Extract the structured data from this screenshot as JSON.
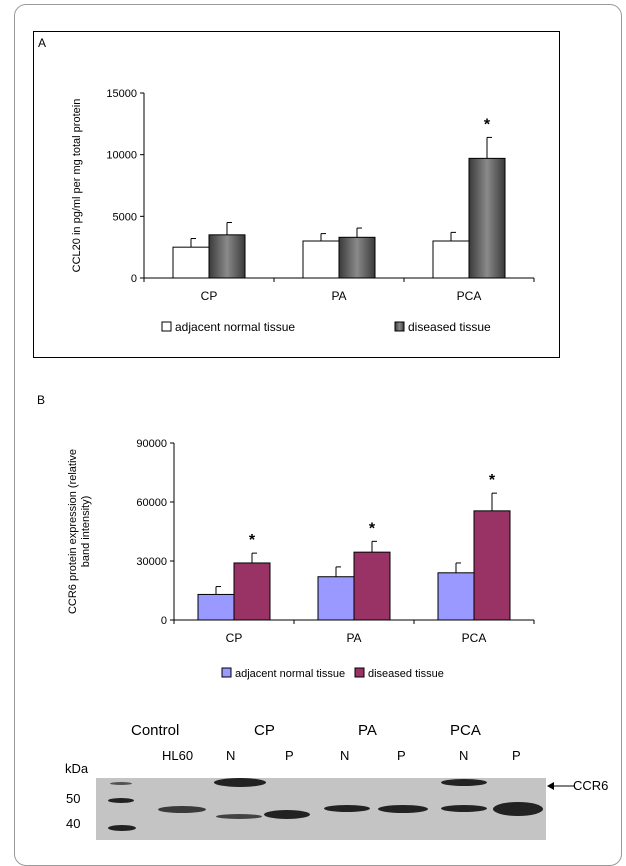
{
  "chart_data": [
    {
      "panel": "A",
      "type": "bar",
      "categories": [
        "CP",
        "PA",
        "PCA"
      ],
      "ylabel": "CCL20 in pg/ml per mg total protein",
      "ylim": [
        0,
        15000
      ],
      "yticks": [
        "0",
        "5000",
        "10000",
        "15000"
      ],
      "legend_position": "bottom",
      "grid": false,
      "series": [
        {
          "name": "adjacent normal tissue",
          "values": [
            2500,
            3000,
            3000
          ],
          "errors": [
            700,
            600,
            700
          ],
          "color": "#ffffff"
        },
        {
          "name": "diseased tissue",
          "values": [
            3500,
            3300,
            9700
          ],
          "errors": [
            1000,
            750,
            1700
          ],
          "color": "#555555"
        }
      ],
      "annotations": [
        {
          "text": "*",
          "category": "PCA",
          "series": "diseased tissue"
        }
      ]
    },
    {
      "panel": "B",
      "type": "bar",
      "categories": [
        "CP",
        "PA",
        "PCA"
      ],
      "ylabel_line1": "CCR6 protein expression (relative",
      "ylabel_line2": "band intensity)",
      "ylim": [
        0,
        90000
      ],
      "yticks": [
        "0",
        "30000",
        "60000",
        "90000"
      ],
      "legend_position": "bottom",
      "grid": false,
      "series": [
        {
          "name": "adjacent normal tissue",
          "values": [
            13000,
            22000,
            24000
          ],
          "errors": [
            4000,
            5000,
            5000
          ],
          "color": "#9999ff"
        },
        {
          "name": "diseased tissue",
          "values": [
            29000,
            34500,
            55500
          ],
          "errors": [
            5000,
            5500,
            9000
          ],
          "color": "#993366"
        }
      ],
      "annotations": [
        {
          "text": "*",
          "category": "CP",
          "series": "diseased tissue"
        },
        {
          "text": "*",
          "category": "PA",
          "series": "diseased tissue"
        },
        {
          "text": "*",
          "category": "PCA",
          "series": "diseased tissue"
        }
      ]
    }
  ],
  "panels": {
    "a_label": "A",
    "b_label": "B"
  },
  "blot": {
    "group_labels": {
      "control": "Control",
      "cp": "CP",
      "pa": "PA",
      "pca": "PCA"
    },
    "lane_labels": {
      "hl60": "HL60",
      "cp_n": "N",
      "cp_p": "P",
      "pa_n": "N",
      "pa_p": "P",
      "pca_n": "N",
      "pca_p": "P"
    },
    "kda_label": "kDa",
    "markers": {
      "m50": "50",
      "m40": "40"
    },
    "band_label": "CCR6"
  }
}
